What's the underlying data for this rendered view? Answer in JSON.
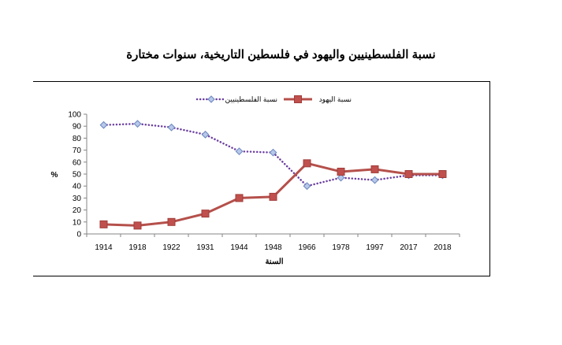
{
  "chart_data": {
    "type": "line",
    "title": "نسبة الفلسطينيين واليهود في فلسطين التاريخية، سنوات مختارة",
    "xlabel": "السنة",
    "ylabel": "%",
    "categories": [
      "1914",
      "1918",
      "1922",
      "1931",
      "1944",
      "1948",
      "1966",
      "1978",
      "1997",
      "2017",
      "2018"
    ],
    "y_ticks": [
      "0",
      "10",
      "20",
      "30",
      "40",
      "50",
      "60",
      "70",
      "80",
      "90",
      "100"
    ],
    "ylim": [
      0,
      100
    ],
    "grid": false,
    "legend_position": "top",
    "series": [
      {
        "name": "نسبة الفلسطينيين",
        "values": [
          91,
          92,
          89,
          83,
          69,
          68,
          40,
          47,
          45,
          49,
          49
        ],
        "color": "#6b3fa0",
        "marker_fill": "#b8c8e8",
        "marker_stroke": "#6a86c0",
        "style": "dotted",
        "marker": "diamond"
      },
      {
        "name": "نسبة اليهود",
        "values": [
          8,
          7,
          10,
          17,
          30,
          31,
          59,
          52,
          54,
          50,
          50
        ],
        "color": "#b5504b",
        "marker_fill": "#c0504d",
        "marker_stroke": "#a03c3a",
        "style": "solid",
        "marker": "square"
      }
    ]
  }
}
